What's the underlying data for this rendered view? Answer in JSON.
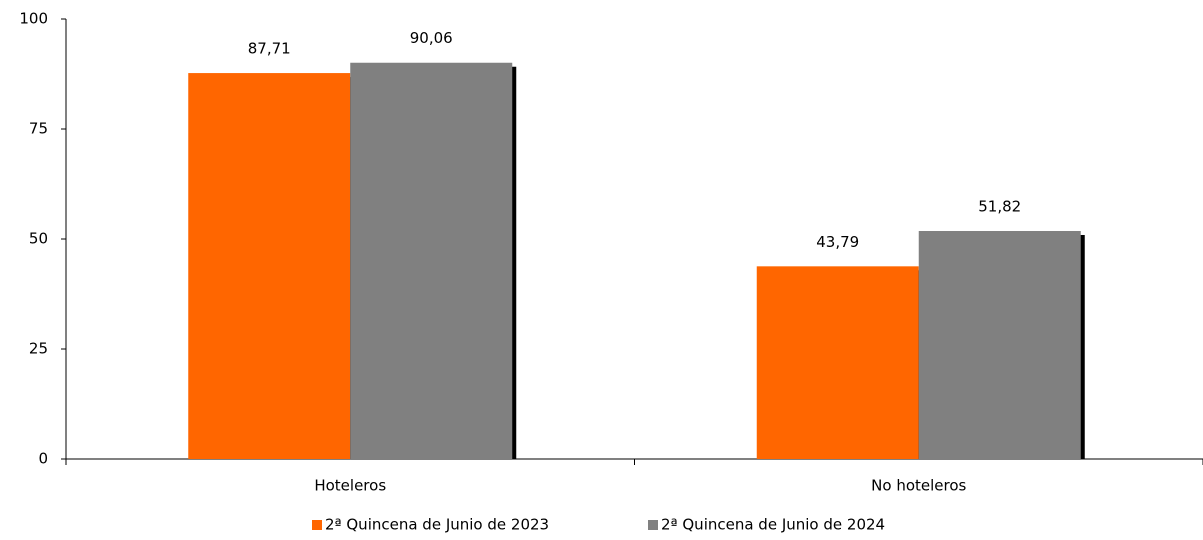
{
  "chart_data": {
    "type": "bar",
    "categories": [
      "Hoteleros",
      "No hoteleros"
    ],
    "series": [
      {
        "name": "2ª Quincena de Junio de 2023",
        "color": "#ff6600",
        "values": [
          87.71,
          43.79
        ],
        "value_labels": [
          "87,71",
          "43,79"
        ]
      },
      {
        "name": "2ª Quincena de Junio de 2024",
        "color": "#808080",
        "values": [
          90.06,
          51.82
        ],
        "value_labels": [
          "90,06",
          "51,82"
        ]
      }
    ],
    "ylim": [
      0,
      100
    ],
    "yticks": [
      0,
      25,
      50,
      75,
      100
    ],
    "grid": false,
    "legend": "bottom"
  }
}
